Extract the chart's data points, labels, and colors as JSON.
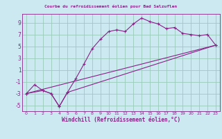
{
  "title": "Courbe du refroidissement éolien pour Bad Salzuflen",
  "xlabel": "Windchill (Refroidissement éolien,°C)",
  "bg_color": "#cce8f0",
  "line_color": "#882288",
  "grid_color": "#99ccbb",
  "xlim": [
    -0.5,
    23.5
  ],
  "ylim": [
    -6.0,
    10.5
  ],
  "xticks": [
    0,
    1,
    2,
    3,
    4,
    5,
    6,
    7,
    8,
    9,
    10,
    11,
    12,
    13,
    14,
    15,
    16,
    17,
    18,
    19,
    20,
    21,
    22,
    23
  ],
  "yticks": [
    -5,
    -3,
    -1,
    1,
    3,
    5,
    7,
    9
  ],
  "series1_x": [
    0,
    1,
    2,
    3,
    4,
    5,
    6,
    7,
    8,
    9,
    10,
    11,
    12,
    13,
    14,
    15,
    16,
    17,
    18,
    19,
    20,
    21,
    22,
    23
  ],
  "series1_y": [
    -3.0,
    -1.5,
    -2.5,
    -3.0,
    -5.2,
    -2.8,
    -0.5,
    2.0,
    4.6,
    6.2,
    7.5,
    7.8,
    7.5,
    8.8,
    9.8,
    9.2,
    8.8,
    8.0,
    8.2,
    7.2,
    7.0,
    6.8,
    7.0,
    5.2
  ],
  "series2_x": [
    0,
    2,
    3,
    4,
    5,
    23
  ],
  "series2_y": [
    -3.0,
    -2.5,
    -3.0,
    -5.2,
    -2.8,
    5.2
  ],
  "series3_x": [
    0,
    23
  ],
  "series3_y": [
    -3.0,
    5.2
  ]
}
